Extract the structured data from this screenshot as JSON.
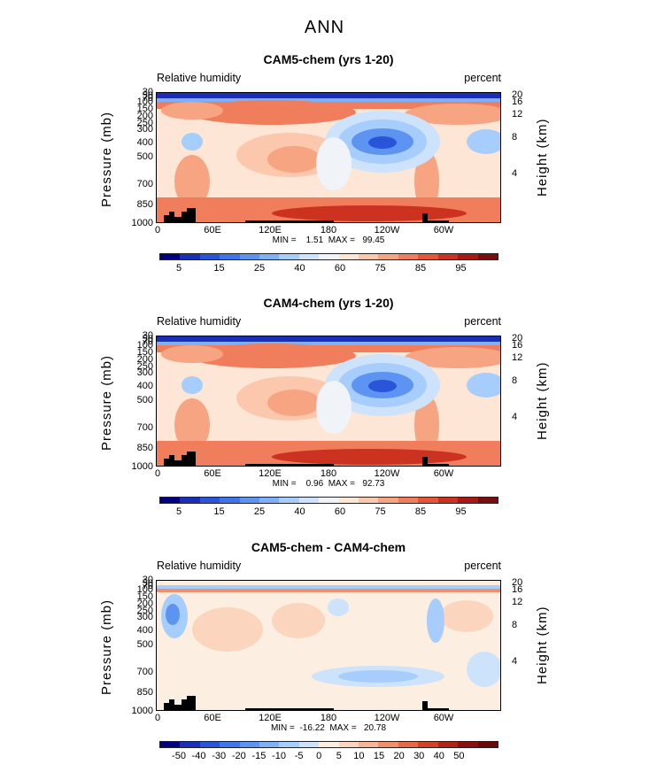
{
  "main_title": "ANN",
  "colors": {
    "abs_scale": [
      "#000080",
      "#1a2fb5",
      "#2a55d8",
      "#3e75ea",
      "#5d94f2",
      "#7fb0f7",
      "#a6cdfb",
      "#cce3fb",
      "#f0f4f8",
      "#fde6d6",
      "#fbc8ad",
      "#f7a482",
      "#f07e5c",
      "#e35636",
      "#cc3220",
      "#a71b12",
      "#7a0d0d"
    ],
    "diff_scale": [
      "#000080",
      "#1a2fb5",
      "#2a55d8",
      "#3e75ea",
      "#5d94f2",
      "#7fb0f7",
      "#a6cdfb",
      "#cce3fb",
      "#fdeee2",
      "#fbd5bd",
      "#f7b596",
      "#f08f6c",
      "#e56947",
      "#d0432a",
      "#b02317",
      "#8b0f0f",
      "#6b0808"
    ]
  },
  "chart_data": [
    {
      "type": "heatmap",
      "title": "CAM5-chem (yrs 1-20)",
      "left_label": "Relative humidity",
      "right_label": "percent",
      "ylabel": "Pressure (mb)",
      "ylabel_right": "Height (km)",
      "pressure_ticks": [
        "30",
        "50",
        "70",
        "100",
        "150",
        "200",
        "250",
        "300",
        "400",
        "500",
        "700",
        "850",
        "1000"
      ],
      "height_ticks": [
        "20",
        "16",
        "12",
        "8",
        "4"
      ],
      "xticks": [
        "0",
        "60E",
        "120E",
        "180",
        "120W",
        "60W"
      ],
      "min_max": "MIN =    1.51  MAX =   99.45",
      "colorbar_labels": [
        "5",
        "15",
        "25",
        "40",
        "60",
        "75",
        "85",
        "95"
      ]
    },
    {
      "type": "heatmap",
      "title": "CAM4-chem (yrs 1-20)",
      "left_label": "Relative humidity",
      "right_label": "percent",
      "ylabel": "Pressure (mb)",
      "ylabel_right": "Height (km)",
      "pressure_ticks": [
        "30",
        "50",
        "70",
        "100",
        "150",
        "200",
        "250",
        "300",
        "400",
        "500",
        "700",
        "850",
        "1000"
      ],
      "height_ticks": [
        "20",
        "16",
        "12",
        "8",
        "4"
      ],
      "xticks": [
        "0",
        "60E",
        "120E",
        "180",
        "120W",
        "60W"
      ],
      "min_max": "MIN =    0.96  MAX =   92.73",
      "colorbar_labels": [
        "5",
        "15",
        "25",
        "40",
        "60",
        "75",
        "85",
        "95"
      ]
    },
    {
      "type": "heatmap",
      "title": "CAM5-chem - CAM4-chem",
      "left_label": "Relative humidity",
      "right_label": "percent",
      "ylabel": "Pressure (mb)",
      "ylabel_right": "Height (km)",
      "pressure_ticks": [
        "30",
        "50",
        "70",
        "100",
        "150",
        "200",
        "250",
        "300",
        "400",
        "500",
        "700",
        "850",
        "1000"
      ],
      "height_ticks": [
        "20",
        "16",
        "12",
        "8",
        "4"
      ],
      "xticks": [
        "0",
        "60E",
        "120E",
        "180",
        "120W",
        "60W"
      ],
      "min_max": "MIN =  -16.22  MAX =   20.78",
      "colorbar_labels": [
        "-50",
        "-40",
        "-30",
        "-20",
        "-15",
        "-10",
        "-5",
        "0",
        "5",
        "10",
        "15",
        "20",
        "30",
        "40",
        "50"
      ]
    }
  ]
}
